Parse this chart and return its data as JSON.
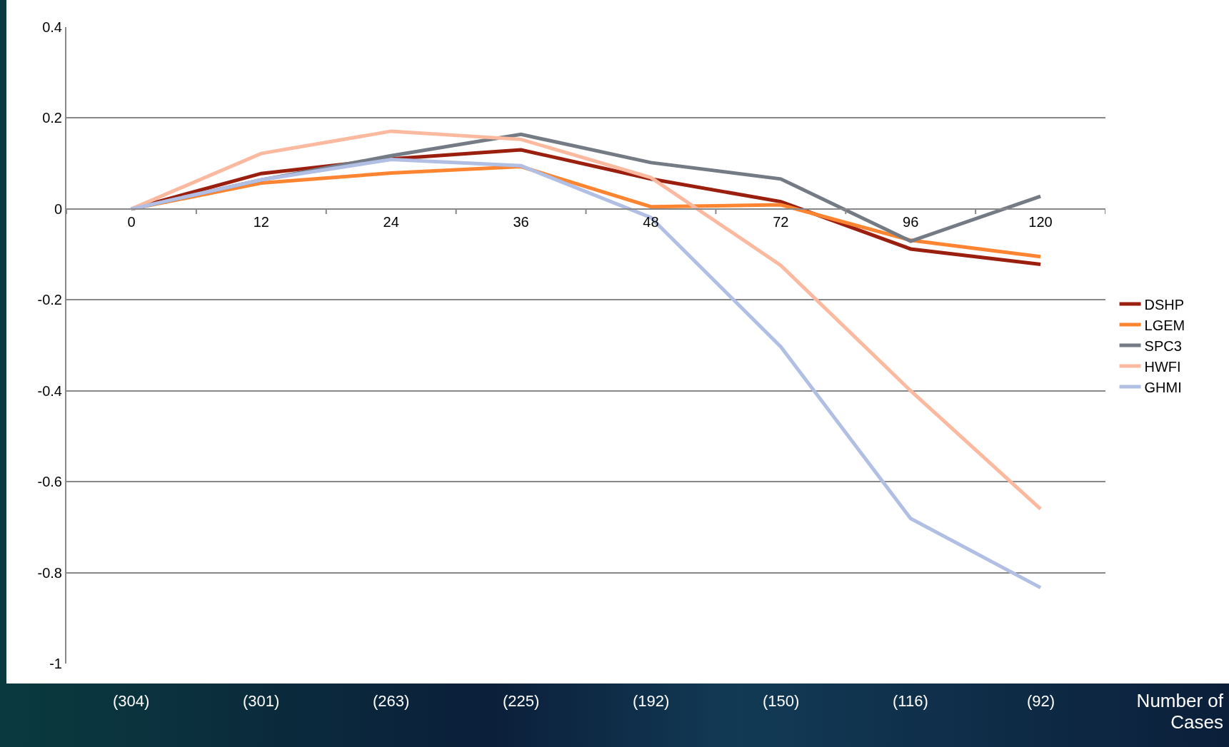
{
  "chart_data": {
    "type": "line",
    "categories": [
      "0",
      "12",
      "24",
      "36",
      "48",
      "72",
      "96",
      "120"
    ],
    "series": [
      {
        "name": "DSHP",
        "color": "#9a1f0f",
        "values": [
          0,
          0.078,
          0.11,
          0.13,
          0.066,
          0.016,
          -0.088,
          -0.122
        ]
      },
      {
        "name": "LGEM",
        "color": "#fd8532",
        "values": [
          0,
          0.057,
          0.079,
          0.093,
          0.005,
          0.009,
          -0.069,
          -0.105
        ]
      },
      {
        "name": "SPC3",
        "color": "#747b84",
        "values": [
          0,
          0.064,
          0.117,
          0.164,
          0.102,
          0.066,
          -0.071,
          0.028
        ]
      },
      {
        "name": "HWFI",
        "color": "#fbb9a0",
        "values": [
          0,
          0.122,
          0.171,
          0.153,
          0.069,
          -0.124,
          -0.4,
          -0.66
        ]
      },
      {
        "name": "GHMI",
        "color": "#b0bfe3",
        "values": [
          0,
          0.064,
          0.109,
          0.095,
          -0.019,
          -0.303,
          -0.681,
          -0.833
        ]
      }
    ],
    "ylim": [
      -1,
      0.4
    ],
    "yticks": [
      -1,
      -0.8,
      -0.6,
      -0.4,
      -0.2,
      0,
      0.2,
      0.4
    ],
    "grid": "y",
    "legend": "right",
    "marker": "none",
    "line_style": "solid",
    "annotations": [
      "(304)",
      "(301)",
      "(263)",
      "(225)",
      "(192)",
      "(150)",
      "(116)",
      "(92)",
      "Number of Cases"
    ]
  }
}
